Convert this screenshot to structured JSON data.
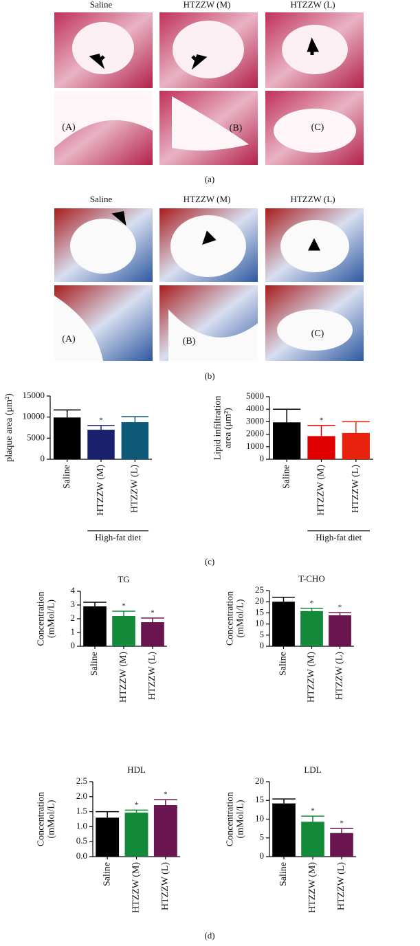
{
  "panel_a": {
    "columns": [
      "Saline",
      "HTZZW (M)",
      "HTZZW (L)"
    ],
    "sublabels": [
      "(A)",
      "(B)",
      "(C)"
    ],
    "caption": "(a)"
  },
  "panel_b": {
    "columns": [
      "Saline",
      "HTZZW (M)",
      "HTZZW (L)"
    ],
    "sublabels": [
      "(A)",
      "(B)",
      "(C)"
    ],
    "caption": "(b)"
  },
  "panel_c": {
    "caption": "(c)"
  },
  "panel_d": {
    "caption": "(d)"
  },
  "chart_data": [
    {
      "type": "bar",
      "ylabel": [
        "plaque area (μm²)"
      ],
      "categories": [
        "Saline",
        "HTZZW (M)",
        "HTZZW (L)"
      ],
      "values": [
        9900,
        7000,
        8800
      ],
      "errors": [
        1800,
        1000,
        1300
      ],
      "colors": [
        "#000000",
        "#1a1f6e",
        "#0e5a78"
      ],
      "annotations": [
        null,
        "*",
        null
      ],
      "group_label": "High-fat diet",
      "ylim": [
        0,
        15000
      ],
      "yticks": [
        0,
        5000,
        10000,
        15000
      ]
    },
    {
      "type": "bar",
      "ylabel": [
        "Lipid infiltration",
        "area (μm²)"
      ],
      "categories": [
        "Saline",
        "HTZZW (M)",
        "HTZZW (L)"
      ],
      "values": [
        2950,
        1850,
        2100
      ],
      "errors": [
        1050,
        850,
        900
      ],
      "colors": [
        "#000000",
        "#e00000",
        "#e8220c"
      ],
      "annotations": [
        null,
        "*",
        null
      ],
      "group_label": "High-fat diet",
      "ylim": [
        0,
        5000
      ],
      "yticks": [
        0,
        1000,
        2000,
        3000,
        4000,
        5000
      ]
    },
    {
      "type": "bar",
      "title": "TG",
      "ylabel": [
        "Concentration",
        "(mMol/L)"
      ],
      "categories": [
        "Saline",
        "HTZZW (M)",
        "HTZZW (L)"
      ],
      "values": [
        2.9,
        2.2,
        1.75
      ],
      "errors": [
        0.3,
        0.35,
        0.3
      ],
      "colors": [
        "#000000",
        "#138a3a",
        "#6b1550"
      ],
      "annotations": [
        null,
        "*",
        "*"
      ],
      "ylim": [
        0,
        4
      ],
      "yticks": [
        0,
        1,
        2,
        3,
        4
      ]
    },
    {
      "type": "bar",
      "title": "T-CHO",
      "ylabel": [
        "Concentration",
        "(mMol/L)"
      ],
      "categories": [
        "Saline",
        "HTZZW (M)",
        "HTZZW (L)"
      ],
      "values": [
        20,
        15.8,
        13.9
      ],
      "errors": [
        2,
        1.2,
        1.2
      ],
      "colors": [
        "#000000",
        "#138a3a",
        "#6b1550"
      ],
      "annotations": [
        null,
        "*",
        "*"
      ],
      "ylim": [
        0,
        25
      ],
      "yticks": [
        0,
        5,
        10,
        15,
        20,
        25
      ]
    },
    {
      "type": "bar",
      "title": "HDL",
      "ylabel": [
        "Concentration",
        "(mMol/L)"
      ],
      "categories": [
        "Saline",
        "HTZZW (M)",
        "HTZZW (L)"
      ],
      "values": [
        1.3,
        1.47,
        1.72
      ],
      "errors": [
        0.2,
        0.08,
        0.18
      ],
      "colors": [
        "#000000",
        "#138a3a",
        "#6b1550"
      ],
      "annotations": [
        null,
        "*",
        "*"
      ],
      "ylim": [
        0,
        2.5
      ],
      "yticks": [
        {
          "value": 0,
          "label": "0.0"
        },
        0.5,
        {
          "value": 1,
          "label": "1.0"
        },
        1.5,
        {
          "value": 2,
          "label": "2.0"
        },
        2.5
      ]
    },
    {
      "type": "bar",
      "title": "LDL",
      "ylabel": [
        "Concentration",
        "(mMol/L)"
      ],
      "categories": [
        "Saline",
        "HTZZW (M)",
        "HTZZW (L)"
      ],
      "values": [
        14.2,
        9.3,
        6.3
      ],
      "errors": [
        1.2,
        1.5,
        1.2
      ],
      "colors": [
        "#000000",
        "#138a3a",
        "#6b1550"
      ],
      "annotations": [
        null,
        "*",
        "*"
      ],
      "ylim": [
        0,
        20
      ],
      "yticks": [
        0,
        5,
        10,
        15,
        20
      ]
    }
  ]
}
